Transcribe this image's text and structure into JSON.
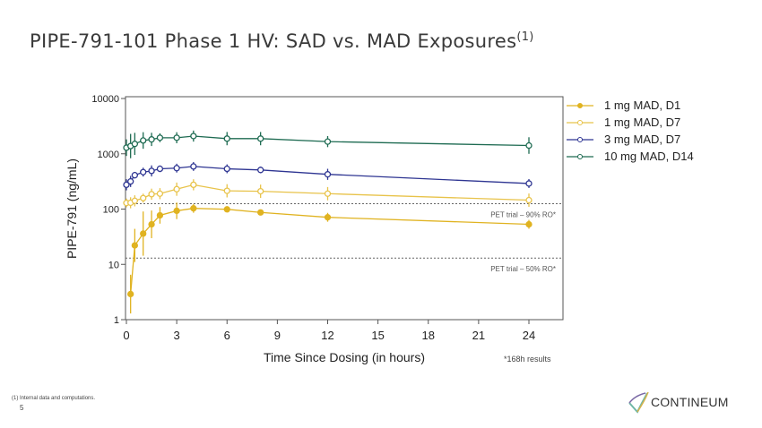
{
  "title": "PIPE-791-101 Phase 1 HV: SAD vs. MAD Exposures",
  "title_sup": "(1)",
  "footnote": "(1)   Internal data and computations.",
  "page_number": "5",
  "logo_text": "CONTINEUM",
  "note": "*168h results",
  "chart_data": {
    "type": "line",
    "xlabel": "Time Since Dosing (in hours)",
    "ylabel": "PIPE-791 (ng/mL)",
    "xlim": [
      0,
      26
    ],
    "ylim": [
      1,
      10000
    ],
    "yscale": "log",
    "xticks": [
      0,
      3,
      6,
      9,
      12,
      15,
      18,
      21,
      24
    ],
    "yticks": [
      1,
      10,
      100,
      1000,
      10000
    ],
    "ytick_labels": [
      "1",
      "10",
      "100",
      "1000",
      "10000"
    ],
    "grid": false,
    "legend_position": "right",
    "reference_lines": [
      {
        "label": "PET trial – 90% RO*",
        "y": 125
      },
      {
        "label": "PET trial – 50% RO*",
        "y": 13
      }
    ],
    "series": [
      {
        "name": "1 mg MAD, D1",
        "color": "#e0b321",
        "marker": "filled",
        "x": [
          0.25,
          0.5,
          1,
          1.5,
          2,
          3,
          4,
          6,
          8,
          12,
          24
        ],
        "y": [
          2.9,
          22,
          36,
          53,
          77,
          93,
          103,
          99,
          87,
          71,
          53
        ],
        "err_log": [
          0.35,
          0.3,
          0.4,
          0.25,
          0.15,
          0.15,
          0.08,
          0.05,
          0.05,
          0.08,
          0.08
        ]
      },
      {
        "name": "1 mg MAD, D7",
        "color": "#e8c34a",
        "marker": "open",
        "x": [
          0,
          0.25,
          0.5,
          1,
          1.5,
          2,
          3,
          4,
          6,
          8,
          12,
          24
        ],
        "y": [
          129,
          130,
          141,
          158,
          186,
          190,
          229,
          275,
          214,
          210,
          190,
          145
        ],
        "err_log": [
          0.08,
          0.1,
          0.1,
          0.08,
          0.1,
          0.1,
          0.12,
          0.1,
          0.12,
          0.12,
          0.12,
          0.12
        ]
      },
      {
        "name": "3 mg MAD, D7",
        "color": "#2e3592",
        "marker": "open",
        "x": [
          0,
          0.25,
          0.5,
          1,
          1.5,
          2,
          3,
          4,
          6,
          8,
          12,
          24
        ],
        "y": [
          275,
          316,
          410,
          466,
          490,
          535,
          550,
          590,
          535,
          510,
          425,
          290
        ],
        "err_log": [
          0.1,
          0.1,
          0.06,
          0.08,
          0.1,
          0.06,
          0.08,
          0.08,
          0.08,
          0.06,
          0.1,
          0.08
        ]
      },
      {
        "name": "10 mg MAD, D14",
        "color": "#1e6b52",
        "marker": "open",
        "x": [
          0,
          0.25,
          0.5,
          1,
          1.5,
          2,
          3,
          4,
          6,
          8,
          12,
          24
        ],
        "y": [
          1290,
          1380,
          1510,
          1740,
          1820,
          1950,
          1950,
          2090,
          1880,
          1880,
          1660,
          1410
        ],
        "err_log": [
          0.15,
          0.22,
          0.2,
          0.15,
          0.12,
          0.08,
          0.1,
          0.1,
          0.12,
          0.12,
          0.1,
          0.15
        ]
      }
    ]
  }
}
